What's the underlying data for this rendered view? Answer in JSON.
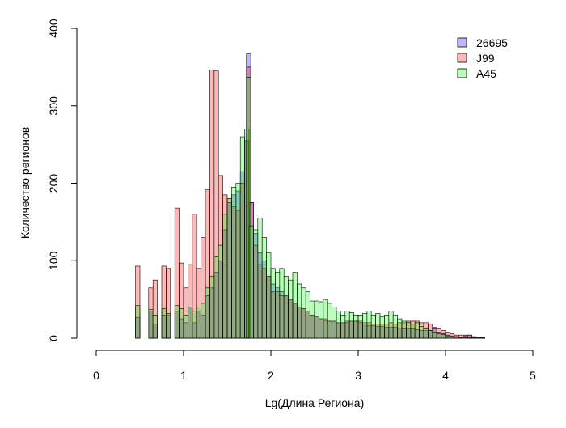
{
  "chart_data": {
    "type": "bar",
    "title": "",
    "xlabel": "Lg(Длина Региона)",
    "ylabel": "Количество регионов",
    "xlim": [
      0,
      5
    ],
    "ylim": [
      0,
      400
    ],
    "xticks": [
      "0",
      "1",
      "2",
      "3",
      "4",
      "5"
    ],
    "yticks": [
      "0",
      "100",
      "200",
      "300",
      "400"
    ],
    "bin_width": 0.05,
    "legend_position": "top-right",
    "series": [
      {
        "name": "26695",
        "color": "#0000ff",
        "bins": [
          [
            0.45,
            27
          ],
          [
            0.6,
            35
          ],
          [
            0.65,
            18
          ],
          [
            0.75,
            30
          ],
          [
            0.8,
            30
          ],
          [
            0.9,
            35
          ],
          [
            0.95,
            25
          ],
          [
            1.0,
            20
          ],
          [
            1.05,
            40
          ],
          [
            1.1,
            20
          ],
          [
            1.15,
            35
          ],
          [
            1.2,
            30
          ],
          [
            1.25,
            55
          ],
          [
            1.3,
            65
          ],
          [
            1.35,
            85
          ],
          [
            1.4,
            100
          ],
          [
            1.45,
            140
          ],
          [
            1.5,
            175
          ],
          [
            1.55,
            185
          ],
          [
            1.6,
            190
          ],
          [
            1.65,
            215
          ],
          [
            1.7,
            255
          ],
          [
            1.72,
            367
          ],
          [
            1.75,
            175
          ],
          [
            1.8,
            135
          ],
          [
            1.85,
            110
          ],
          [
            1.9,
            100
          ],
          [
            1.95,
            80
          ],
          [
            2.0,
            70
          ],
          [
            2.05,
            65
          ],
          [
            2.1,
            60
          ],
          [
            2.15,
            55
          ],
          [
            2.2,
            50
          ],
          [
            2.25,
            45
          ],
          [
            2.3,
            40
          ],
          [
            2.35,
            38
          ],
          [
            2.4,
            35
          ],
          [
            2.45,
            30
          ],
          [
            2.5,
            28
          ],
          [
            2.55,
            25
          ],
          [
            2.6,
            23
          ],
          [
            2.65,
            22
          ],
          [
            2.7,
            22
          ],
          [
            2.75,
            20
          ],
          [
            2.8,
            20
          ],
          [
            2.85,
            20
          ],
          [
            2.9,
            22
          ],
          [
            2.95,
            22
          ],
          [
            3.0,
            20
          ],
          [
            3.05,
            18
          ],
          [
            3.1,
            16
          ],
          [
            3.15,
            16
          ],
          [
            3.2,
            15
          ],
          [
            3.25,
            15
          ],
          [
            3.3,
            14
          ],
          [
            3.35,
            14
          ],
          [
            3.4,
            14
          ],
          [
            3.45,
            13
          ],
          [
            3.5,
            12
          ],
          [
            3.55,
            12
          ],
          [
            3.6,
            12
          ],
          [
            3.65,
            11
          ],
          [
            3.7,
            10
          ],
          [
            3.75,
            10
          ],
          [
            3.8,
            10
          ],
          [
            3.85,
            14
          ],
          [
            3.9,
            8
          ],
          [
            3.95,
            6
          ],
          [
            4.0,
            4
          ],
          [
            4.05,
            3
          ],
          [
            4.1,
            2
          ],
          [
            4.15,
            1
          ],
          [
            4.2,
            3
          ],
          [
            4.25,
            4
          ],
          [
            4.3,
            1
          ],
          [
            4.35,
            1
          ],
          [
            4.4,
            1
          ]
        ]
      },
      {
        "name": "J99",
        "color": "#ff0000",
        "bins": [
          [
            0.45,
            93
          ],
          [
            0.6,
            65
          ],
          [
            0.65,
            75
          ],
          [
            0.75,
            93
          ],
          [
            0.8,
            90
          ],
          [
            0.9,
            168
          ],
          [
            0.95,
            97
          ],
          [
            1.0,
            65
          ],
          [
            1.05,
            95
          ],
          [
            1.1,
            160
          ],
          [
            1.15,
            90
          ],
          [
            1.2,
            130
          ],
          [
            1.25,
            192
          ],
          [
            1.3,
            346
          ],
          [
            1.35,
            345
          ],
          [
            1.4,
            210
          ],
          [
            1.45,
            185
          ],
          [
            1.5,
            180
          ],
          [
            1.55,
            170
          ],
          [
            1.6,
            165
          ],
          [
            1.65,
            200
          ],
          [
            1.7,
            255
          ],
          [
            1.72,
            350
          ],
          [
            1.75,
            175
          ],
          [
            1.8,
            120
          ],
          [
            1.85,
            95
          ],
          [
            1.9,
            90
          ],
          [
            1.95,
            80
          ],
          [
            2.0,
            60
          ],
          [
            2.05,
            60
          ],
          [
            2.1,
            55
          ],
          [
            2.15,
            55
          ],
          [
            2.2,
            50
          ],
          [
            2.25,
            45
          ],
          [
            2.3,
            40
          ],
          [
            2.35,
            38
          ],
          [
            2.4,
            35
          ],
          [
            2.45,
            30
          ],
          [
            2.5,
            28
          ],
          [
            2.55,
            25
          ],
          [
            2.6,
            25
          ],
          [
            2.65,
            22
          ],
          [
            2.7,
            22
          ],
          [
            2.75,
            20
          ],
          [
            2.8,
            20
          ],
          [
            2.85,
            22
          ],
          [
            2.9,
            22
          ],
          [
            2.95,
            22
          ],
          [
            3.0,
            22
          ],
          [
            3.05,
            20
          ],
          [
            3.1,
            20
          ],
          [
            3.15,
            18
          ],
          [
            3.2,
            18
          ],
          [
            3.25,
            18
          ],
          [
            3.3,
            18
          ],
          [
            3.35,
            20
          ],
          [
            3.4,
            18
          ],
          [
            3.45,
            20
          ],
          [
            3.5,
            20
          ],
          [
            3.55,
            22
          ],
          [
            3.6,
            22
          ],
          [
            3.65,
            22
          ],
          [
            3.7,
            20
          ],
          [
            3.75,
            20
          ],
          [
            3.8,
            18
          ],
          [
            3.85,
            12
          ],
          [
            3.9,
            12
          ],
          [
            3.95,
            10
          ],
          [
            4.0,
            8
          ],
          [
            4.05,
            6
          ],
          [
            4.1,
            4
          ],
          [
            4.15,
            4
          ],
          [
            4.2,
            4
          ],
          [
            4.25,
            4
          ],
          [
            4.3,
            2
          ],
          [
            4.35,
            1
          ],
          [
            4.4,
            1
          ]
        ]
      },
      {
        "name": "A45",
        "color": "#00ff00",
        "bins": [
          [
            0.45,
            42
          ],
          [
            0.6,
            37
          ],
          [
            0.65,
            30
          ],
          [
            0.75,
            38
          ],
          [
            0.8,
            32
          ],
          [
            0.9,
            42
          ],
          [
            0.95,
            38
          ],
          [
            1.0,
            30
          ],
          [
            1.05,
            40
          ],
          [
            1.1,
            35
          ],
          [
            1.15,
            40
          ],
          [
            1.2,
            45
          ],
          [
            1.25,
            65
          ],
          [
            1.3,
            80
          ],
          [
            1.35,
            105
          ],
          [
            1.4,
            120
          ],
          [
            1.45,
            160
          ],
          [
            1.5,
            180
          ],
          [
            1.55,
            195
          ],
          [
            1.6,
            200
          ],
          [
            1.65,
            260
          ],
          [
            1.7,
            270
          ],
          [
            1.72,
            337
          ],
          [
            1.75,
            145
          ],
          [
            1.8,
            140
          ],
          [
            1.85,
            155
          ],
          [
            1.9,
            130
          ],
          [
            1.95,
            110
          ],
          [
            2.0,
            90
          ],
          [
            2.05,
            85
          ],
          [
            2.1,
            90
          ],
          [
            2.15,
            80
          ],
          [
            2.2,
            75
          ],
          [
            2.25,
            85
          ],
          [
            2.3,
            70
          ],
          [
            2.35,
            65
          ],
          [
            2.4,
            60
          ],
          [
            2.45,
            48
          ],
          [
            2.5,
            48
          ],
          [
            2.55,
            47
          ],
          [
            2.6,
            50
          ],
          [
            2.65,
            45
          ],
          [
            2.7,
            40
          ],
          [
            2.75,
            35
          ],
          [
            2.8,
            30
          ],
          [
            2.85,
            35
          ],
          [
            2.9,
            33
          ],
          [
            2.95,
            30
          ],
          [
            3.0,
            30
          ],
          [
            3.05,
            32
          ],
          [
            3.1,
            35
          ],
          [
            3.15,
            30
          ],
          [
            3.2,
            32
          ],
          [
            3.25,
            28
          ],
          [
            3.3,
            30
          ],
          [
            3.35,
            35
          ],
          [
            3.4,
            30
          ],
          [
            3.45,
            25
          ],
          [
            3.5,
            22
          ],
          [
            3.55,
            20
          ],
          [
            3.6,
            18
          ],
          [
            3.65,
            20
          ],
          [
            3.7,
            15
          ],
          [
            3.75,
            12
          ],
          [
            3.8,
            10
          ],
          [
            3.85,
            8
          ],
          [
            3.9,
            6
          ],
          [
            3.95,
            5
          ],
          [
            4.0,
            3
          ],
          [
            4.05,
            2
          ],
          [
            4.1,
            2
          ],
          [
            4.15,
            1
          ],
          [
            4.2,
            1
          ],
          [
            4.25,
            1
          ],
          [
            4.3,
            1
          ],
          [
            4.35,
            1
          ],
          [
            4.4,
            1
          ]
        ]
      }
    ]
  }
}
